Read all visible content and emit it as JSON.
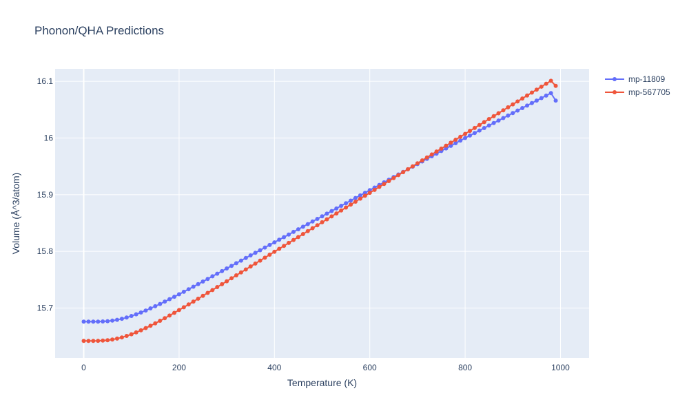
{
  "chart_data": {
    "type": "line",
    "title": "Phonon/QHA Predictions",
    "xlabel": "Temperature (K)",
    "ylabel": "Volume (Å^3/atom)",
    "xlim": [
      -60,
      1060
    ],
    "ylim": [
      15.612,
      16.122
    ],
    "x_ticks": [
      0,
      200,
      400,
      600,
      800,
      1000
    ],
    "x_tick_labels": [
      "0",
      "200",
      "400",
      "600",
      "800",
      "1000"
    ],
    "y_ticks": [
      15.7,
      15.8,
      15.9,
      16.0,
      16.1
    ],
    "y_tick_labels": [
      "15.7",
      "15.8",
      "15.9",
      "16",
      "16.1"
    ],
    "grid": true,
    "legend_position": "top-right",
    "series": [
      {
        "name": "mp-11809",
        "color": "#636efa",
        "marker": "circle",
        "x": [
          0,
          10,
          20,
          30,
          40,
          50,
          60,
          70,
          80,
          90,
          100,
          110,
          120,
          130,
          140,
          150,
          160,
          170,
          180,
          190,
          200,
          210,
          220,
          230,
          240,
          250,
          260,
          270,
          280,
          290,
          300,
          310,
          320,
          330,
          340,
          350,
          360,
          370,
          380,
          390,
          400,
          410,
          420,
          430,
          440,
          450,
          460,
          470,
          480,
          490,
          500,
          510,
          520,
          530,
          540,
          550,
          560,
          570,
          580,
          590,
          600,
          610,
          620,
          630,
          640,
          650,
          660,
          670,
          680,
          690,
          700,
          710,
          720,
          730,
          740,
          750,
          760,
          770,
          780,
          790,
          800,
          810,
          820,
          830,
          840,
          850,
          860,
          870,
          880,
          890,
          900,
          910,
          920,
          930,
          940,
          950,
          960,
          970,
          980,
          990
        ],
        "values": [
          15.676,
          15.676,
          15.676,
          15.676,
          15.6763,
          15.6768,
          15.6778,
          15.6792,
          15.681,
          15.6833,
          15.686,
          15.6889,
          15.6922,
          15.6957,
          15.6994,
          15.7032,
          15.7072,
          15.7114,
          15.7156,
          15.7199,
          15.7243,
          15.7287,
          15.7332,
          15.7377,
          15.7422,
          15.7468,
          15.7514,
          15.756,
          15.7606,
          15.7652,
          15.7698,
          15.7744,
          15.7791,
          15.7837,
          15.7883,
          15.7929,
          15.7975,
          15.8021,
          15.8067,
          15.8113,
          15.8159,
          15.8205,
          15.8251,
          15.8297,
          15.8343,
          15.8389,
          15.8435,
          15.8481,
          15.8527,
          15.8573,
          15.8619,
          15.8665,
          15.8711,
          15.8757,
          15.8803,
          15.8849,
          15.8895,
          15.8941,
          15.8987,
          15.9033,
          15.908,
          15.9126,
          15.9172,
          15.9218,
          15.9264,
          15.931,
          15.9356,
          15.9402,
          15.9448,
          15.9494,
          15.954,
          15.9586,
          15.9632,
          15.9678,
          15.9724,
          15.977,
          15.9816,
          15.9862,
          15.9908,
          15.9954,
          16.0,
          16.0044,
          16.0088,
          16.0132,
          16.0176,
          16.022,
          16.0264,
          16.0308,
          16.0352,
          16.0396,
          16.044,
          16.0484,
          16.0528,
          16.0572,
          16.0616,
          16.066,
          16.0704,
          16.0748,
          16.0792,
          16.066
        ]
      },
      {
        "name": "mp-567705",
        "color": "#ef553b",
        "marker": "circle",
        "x": [
          0,
          10,
          20,
          30,
          40,
          50,
          60,
          70,
          80,
          90,
          100,
          110,
          120,
          130,
          140,
          150,
          160,
          170,
          180,
          190,
          200,
          210,
          220,
          230,
          240,
          250,
          260,
          270,
          280,
          290,
          300,
          310,
          320,
          330,
          340,
          350,
          360,
          370,
          380,
          390,
          400,
          410,
          420,
          430,
          440,
          450,
          460,
          470,
          480,
          490,
          500,
          510,
          520,
          530,
          540,
          550,
          560,
          570,
          580,
          590,
          600,
          610,
          620,
          630,
          640,
          650,
          660,
          670,
          680,
          690,
          700,
          710,
          720,
          730,
          740,
          750,
          760,
          770,
          780,
          790,
          800,
          810,
          820,
          830,
          840,
          850,
          860,
          870,
          880,
          890,
          900,
          910,
          920,
          930,
          940,
          950,
          960,
          970,
          980,
          990
        ],
        "values": [
          15.642,
          15.642,
          15.642,
          15.6422,
          15.6426,
          15.6433,
          15.6445,
          15.6461,
          15.6482,
          15.6508,
          15.6538,
          15.6571,
          15.6607,
          15.6646,
          15.6687,
          15.673,
          15.6775,
          15.6821,
          15.6868,
          15.6916,
          15.6965,
          15.7014,
          15.7064,
          15.7114,
          15.7165,
          15.7216,
          15.7267,
          15.7318,
          15.737,
          15.7421,
          15.7473,
          15.7525,
          15.7577,
          15.7629,
          15.7681,
          15.7733,
          15.7785,
          15.7837,
          15.7889,
          15.7941,
          15.7993,
          15.8045,
          15.8097,
          15.8149,
          15.8201,
          15.8253,
          15.8305,
          15.8357,
          15.8409,
          15.8461,
          15.8513,
          15.8565,
          15.8617,
          15.8669,
          15.8721,
          15.8773,
          15.8825,
          15.8877,
          15.8929,
          15.8981,
          15.9033,
          15.9085,
          15.9137,
          15.9189,
          15.9241,
          15.9293,
          15.9345,
          15.9397,
          15.9449,
          15.9501,
          15.9553,
          15.9605,
          15.9657,
          15.9709,
          15.9761,
          15.9813,
          15.9865,
          15.9917,
          15.9969,
          16.0021,
          16.0073,
          16.0125,
          16.0177,
          16.0229,
          16.0281,
          16.0333,
          16.0385,
          16.0437,
          16.0489,
          16.0541,
          16.0593,
          16.0645,
          16.0697,
          16.0749,
          16.0801,
          16.0853,
          16.0905,
          16.0957,
          16.1009,
          16.092
        ]
      }
    ]
  }
}
